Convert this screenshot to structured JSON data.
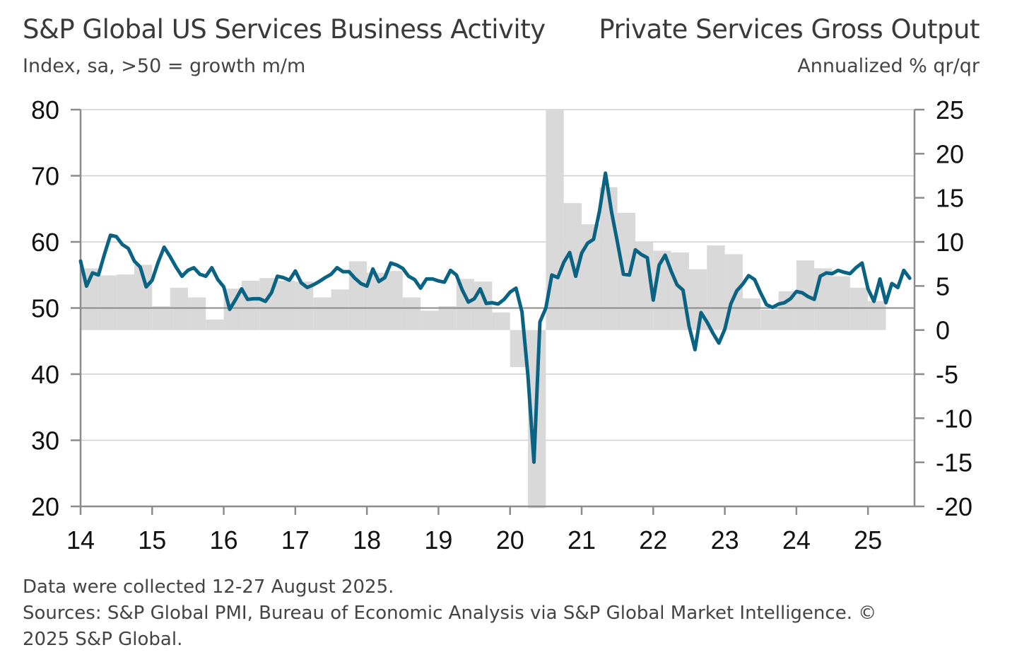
{
  "header": {
    "left_title": "S&P Global US Services Business Activity",
    "left_subtitle": "Index, sa, >50 = growth m/m",
    "right_title": "Private Services Gross Output",
    "right_subtitle": "Annualized % qr/qr"
  },
  "footer": {
    "line1": "Data were collected 12-27 August 2025.",
    "line2": "Sources: S&P Global PMI, Bureau of Economic Analysis via S&P Global Market Intelligence. ©",
    "line3": "2025 S&P Global."
  },
  "colors": {
    "line": "#0b6383",
    "bars": "#d9d9d9",
    "grid": "#d0d0d0",
    "axis": "#8c8c8c"
  },
  "chart_data": {
    "type": "line",
    "x_tick_labels": [
      "14",
      "15",
      "16",
      "17",
      "18",
      "19",
      "20",
      "21",
      "22",
      "23",
      "24",
      "25"
    ],
    "x_range": [
      2014.0,
      2025.65
    ],
    "y_left": {
      "range": [
        20,
        80
      ],
      "ticks": [
        80,
        70,
        60,
        50,
        40,
        30,
        20
      ]
    },
    "y_right": {
      "range": [
        -20,
        25
      ],
      "ticks": [
        25,
        20,
        15,
        10,
        5,
        0,
        -5,
        -10,
        -15,
        -20
      ]
    },
    "grid": true,
    "series": [
      {
        "kind": "bar",
        "axis": "right",
        "x": [
          2014.0,
          2014.25,
          2014.5,
          2014.75,
          2015.0,
          2015.25,
          2015.5,
          2015.75,
          2016.0,
          2016.25,
          2016.5,
          2016.75,
          2017.0,
          2017.25,
          2017.5,
          2017.75,
          2018.0,
          2018.25,
          2018.5,
          2018.75,
          2019.0,
          2019.25,
          2019.5,
          2019.75,
          2020.0,
          2020.25,
          2020.5,
          2020.75,
          2021.0,
          2021.25,
          2021.5,
          2021.75,
          2022.0,
          2022.25,
          2022.5,
          2022.75,
          2023.0,
          2023.25,
          2023.5,
          2023.75,
          2024.0,
          2024.25,
          2024.5,
          2024.75,
          2025.0
        ],
        "values": [
          7.0,
          6.2,
          6.3,
          7.4,
          2.7,
          4.8,
          3.7,
          1.2,
          4.7,
          5.6,
          5.9,
          5.6,
          5.5,
          3.7,
          4.6,
          7.8,
          6.5,
          6.7,
          3.7,
          2.2,
          2.7,
          5.8,
          5.5,
          2.0,
          -4.2,
          -20.2,
          25.0,
          14.4,
          12.0,
          16.2,
          13.3,
          10.0,
          9.0,
          8.8,
          6.9,
          9.6,
          8.6,
          3.6,
          2.3,
          4.4,
          7.9,
          7.0,
          6.1,
          4.8,
          3.3
        ]
      },
      {
        "kind": "line",
        "axis": "left",
        "x": [
          2014.0,
          2014.083,
          2014.167,
          2014.25,
          2014.333,
          2014.417,
          2014.5,
          2014.583,
          2014.667,
          2014.75,
          2014.833,
          2014.917,
          2015.0,
          2015.083,
          2015.167,
          2015.25,
          2015.333,
          2015.417,
          2015.5,
          2015.583,
          2015.667,
          2015.75,
          2015.833,
          2015.917,
          2016.0,
          2016.083,
          2016.167,
          2016.25,
          2016.333,
          2016.417,
          2016.5,
          2016.583,
          2016.667,
          2016.75,
          2016.833,
          2016.917,
          2017.0,
          2017.083,
          2017.167,
          2017.25,
          2017.333,
          2017.417,
          2017.5,
          2017.583,
          2017.667,
          2017.75,
          2017.833,
          2017.917,
          2018.0,
          2018.083,
          2018.167,
          2018.25,
          2018.333,
          2018.417,
          2018.5,
          2018.583,
          2018.667,
          2018.75,
          2018.833,
          2018.917,
          2019.0,
          2019.083,
          2019.167,
          2019.25,
          2019.333,
          2019.417,
          2019.5,
          2019.583,
          2019.667,
          2019.75,
          2019.833,
          2019.917,
          2020.0,
          2020.083,
          2020.167,
          2020.25,
          2020.333,
          2020.417,
          2020.5,
          2020.583,
          2020.667,
          2020.75,
          2020.833,
          2020.917,
          2021.0,
          2021.083,
          2021.167,
          2021.25,
          2021.333,
          2021.417,
          2021.5,
          2021.583,
          2021.667,
          2021.75,
          2021.833,
          2021.917,
          2022.0,
          2022.083,
          2022.167,
          2022.25,
          2022.333,
          2022.417,
          2022.5,
          2022.583,
          2022.667,
          2022.75,
          2022.833,
          2022.917,
          2023.0,
          2023.083,
          2023.167,
          2023.25,
          2023.333,
          2023.417,
          2023.5,
          2023.583,
          2023.667,
          2023.75,
          2023.833,
          2023.917,
          2024.0,
          2024.083,
          2024.167,
          2024.25,
          2024.333,
          2024.417,
          2024.5,
          2024.583,
          2024.667,
          2024.75,
          2024.833,
          2024.917,
          2025.0,
          2025.083,
          2025.167,
          2025.25,
          2025.333,
          2025.417,
          2025.5,
          2025.583
        ],
        "values": [
          57.1,
          53.3,
          55.3,
          55.0,
          58.1,
          61.0,
          60.8,
          59.6,
          59.0,
          57.1,
          56.2,
          53.2,
          54.2,
          56.9,
          59.2,
          57.8,
          56.2,
          54.8,
          55.7,
          56.1,
          55.1,
          54.8,
          56.1,
          54.3,
          53.2,
          49.8,
          51.3,
          52.9,
          51.3,
          51.4,
          51.4,
          51.0,
          52.3,
          54.8,
          54.6,
          54.2,
          55.6,
          53.8,
          53.1,
          53.5,
          54.0,
          54.6,
          55.1,
          56.1,
          55.5,
          55.5,
          54.5,
          53.7,
          53.3,
          55.9,
          54.0,
          54.6,
          56.8,
          56.5,
          56.0,
          54.8,
          54.3,
          53.0,
          54.4,
          54.4,
          54.1,
          53.9,
          55.7,
          55.0,
          52.7,
          50.9,
          51.4,
          52.9,
          50.7,
          50.8,
          50.6,
          51.3,
          52.4,
          53.0,
          49.4,
          39.8,
          26.7,
          47.9,
          50.0,
          55.0,
          54.6,
          56.9,
          58.4,
          54.8,
          58.3,
          59.8,
          60.4,
          64.7,
          70.4,
          64.6,
          59.9,
          55.1,
          55.0,
          58.8,
          58.1,
          57.6,
          51.2,
          56.5,
          58.0,
          55.6,
          53.5,
          52.7,
          47.3,
          43.7,
          49.3,
          47.9,
          46.2,
          44.7,
          46.8,
          50.6,
          52.6,
          53.6,
          54.9,
          54.3,
          52.3,
          50.5,
          50.1,
          50.6,
          50.8,
          51.4,
          52.5,
          52.3,
          51.7,
          51.3,
          54.8,
          55.3,
          55.2,
          55.7,
          55.4,
          55.2,
          56.1,
          56.8,
          52.9,
          51.0,
          54.4,
          50.8,
          53.7,
          53.1,
          55.7,
          54.5
        ]
      }
    ]
  }
}
